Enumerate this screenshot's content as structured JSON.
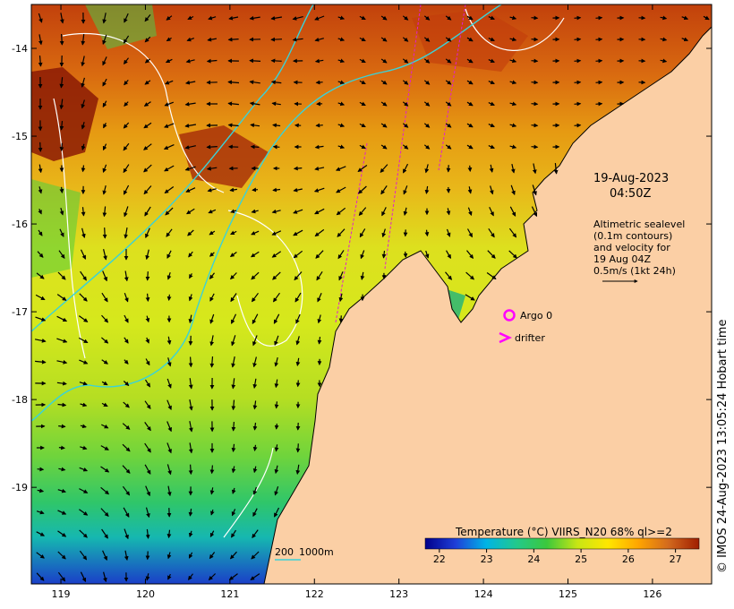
{
  "map": {
    "lon_range": [
      118.65,
      126.7
    ],
    "lat_range": [
      -20.1,
      -13.5
    ],
    "lon_ticks": [
      "119",
      "120",
      "121",
      "122",
      "123",
      "124",
      "125",
      "126"
    ],
    "lat_ticks": [
      "-14",
      "-15",
      "-16",
      "-17",
      "-18",
      "-19"
    ]
  },
  "colors": {
    "land": "#fbcfa5",
    "coastline": "#000000",
    "contour": "#ffffff",
    "depth_contour": "#3ad2d8",
    "track": "#e020d0",
    "argo": "#ff00ff",
    "drifter": "#ff00ff"
  },
  "timestamp": {
    "date": "19-Aug-2023",
    "time": "04:50Z"
  },
  "altimetry_note": {
    "lines": [
      "Altimetric sealevel",
      "(0.1m contours)",
      "and velocity for",
      "19 Aug 04Z",
      "0.5m/s (1kt 24h)"
    ]
  },
  "legend": {
    "argo_label": "Argo 0",
    "drifter_label": "drifter"
  },
  "scale": {
    "left_label": "200",
    "right_label": "1000m"
  },
  "colorbar": {
    "title": "Temperature (°C) VIIRS_N20 68% ql>=2",
    "ticks": [
      "22",
      "23",
      "24",
      "25",
      "26",
      "27"
    ],
    "range": [
      21.7,
      27.5
    ],
    "stops": [
      "#00008b",
      "#1f3fd8",
      "#00b4e6",
      "#22c98c",
      "#3cc83c",
      "#c8e614",
      "#ffe600",
      "#ffa500",
      "#d2691e",
      "#a01e00"
    ]
  },
  "credit": "© IMOS 24-Aug-2023 13:05:24 Hobart time"
}
